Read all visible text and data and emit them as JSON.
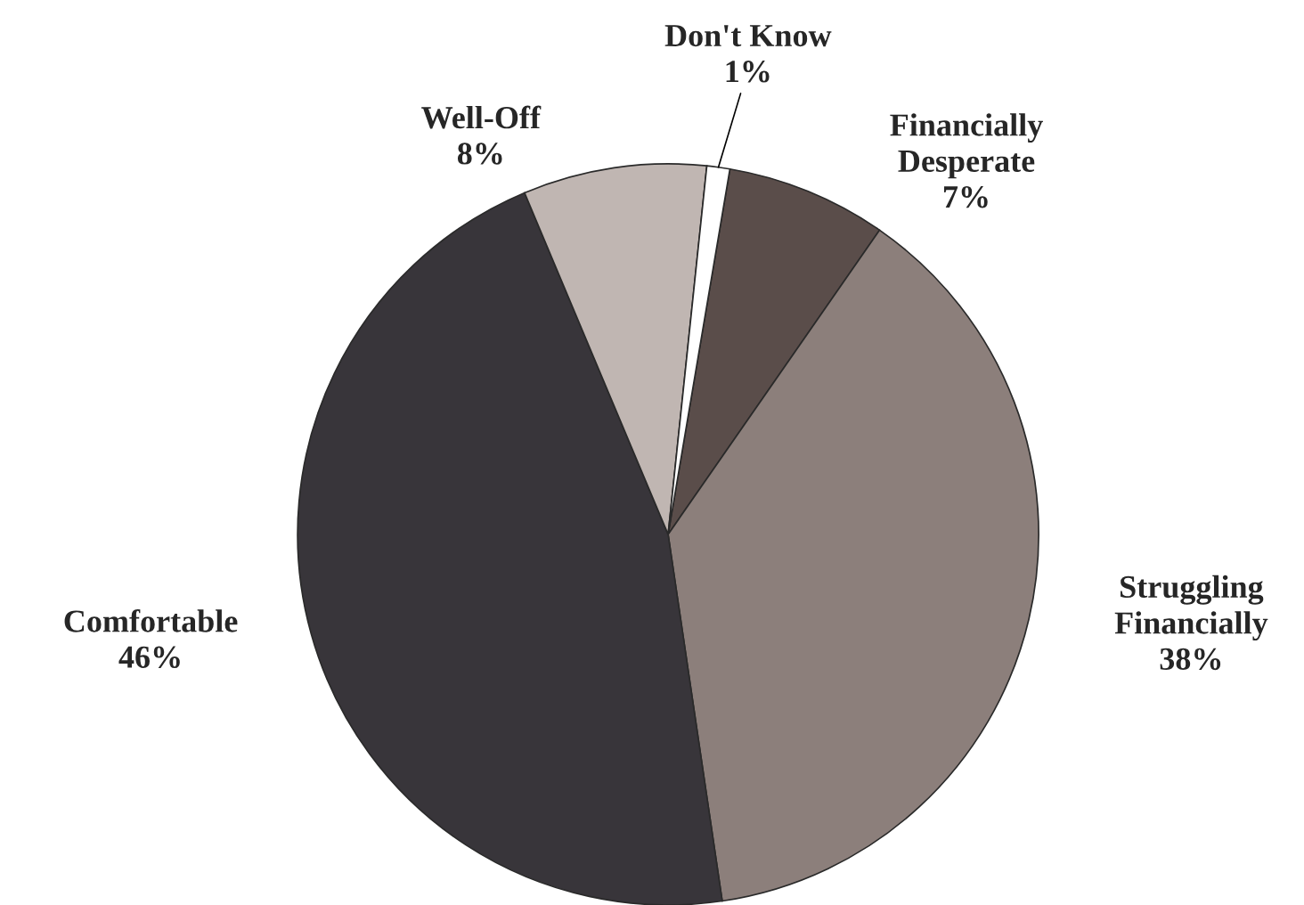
{
  "chart_data": {
    "type": "pie",
    "categories": [
      "Financially\nDesperate",
      "Struggling\nFinancially",
      "Comfortable",
      "Well-Off",
      "Don't Know"
    ],
    "values": [
      7,
      38,
      46,
      8,
      1
    ],
    "value_labels": [
      "7%",
      "38%",
      "46%",
      "8%",
      "1%"
    ],
    "colors": [
      "#5a4d4a",
      "#8c7f7b",
      "#38353a",
      "#c0b6b2",
      "#ffffff"
    ]
  }
}
